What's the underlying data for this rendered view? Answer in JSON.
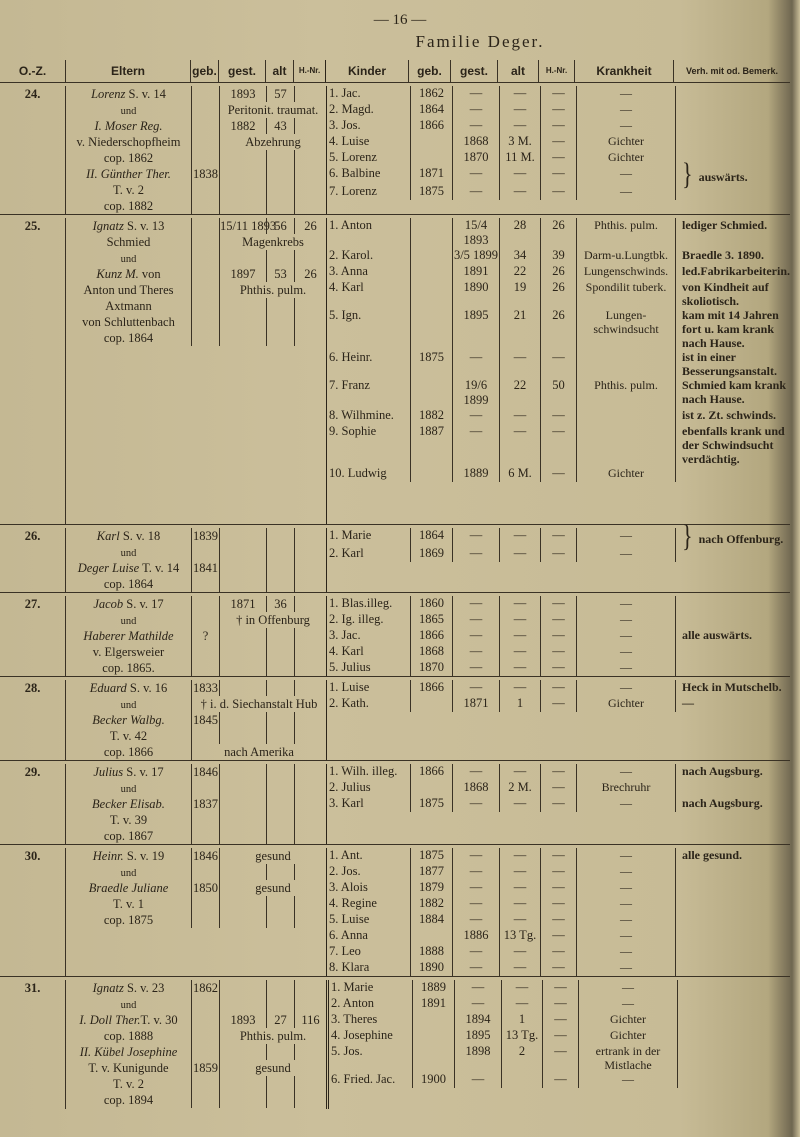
{
  "page_number": "— 16 —",
  "title": "Familie Deger.",
  "columns": [
    "O.-Z.",
    "Eltern",
    "geb.",
    "gest.",
    "alt",
    "H.-Nr.",
    "Kinder",
    "geb.",
    "gest.",
    "alt",
    "H.-Nr.",
    "Krankheit",
    "Verh. mit od. Bemerk."
  ],
  "families": [
    {
      "oz": "24.",
      "parents": [
        {
          "it": "Lorenz",
          "tx": " S. v. 14",
          "gest": "1893",
          "alt": "57"
        },
        {
          "tx": "und",
          "und": true,
          "span": "Peritonit. traumat."
        },
        {
          "it": "I. Moser Reg.",
          "gest": "1882",
          "alt": "43"
        },
        {
          "tx": "v. Niederschopfheim",
          "span": "Abzehrung"
        },
        {
          "tx": "cop. 1862"
        },
        {
          "it": "II. Günther Ther.",
          "geb": "1838"
        },
        {
          "tx": "T. v. 2"
        },
        {
          "tx": "cop. 1882"
        }
      ],
      "children": [
        [
          "1. Jac.",
          "1862",
          "—",
          "—",
          "—",
          "—",
          ""
        ],
        [
          "2. Magd.",
          "1864",
          "—",
          "—",
          "—",
          "—",
          ""
        ],
        [
          "3. Jos.",
          "1866",
          "—",
          "—",
          "—",
          "—",
          ""
        ],
        [
          "4. Luise",
          "",
          "1868",
          "3 M.",
          "—",
          "Gichter",
          ""
        ],
        [
          "5. Lorenz",
          "",
          "1870",
          "11 M.",
          "—",
          "Gichter",
          ""
        ],
        [
          "6. Balbine",
          "1871",
          "—",
          "—",
          "—",
          "—",
          "auswärts."
        ],
        [
          "7. Lorenz",
          "1875",
          "—",
          "—",
          "—",
          "—",
          ""
        ]
      ],
      "brace_row": 5
    },
    {
      "oz": "25.",
      "parents": [
        {
          "it": "Ignatz",
          "tx": " S. v. 13",
          "gest": "15/11 1893",
          "alt": "56",
          "hnr": "26"
        },
        {
          "tx": "Schmied",
          "span": "Magenkrebs"
        },
        {
          "tx": "und",
          "und": true
        },
        {
          "it": "Kunz M.",
          "tx": " von",
          "gest": "1897",
          "alt": "53",
          "hnr": "26"
        },
        {
          "tx": "Anton und Theres",
          "span": "Phthis. pulm."
        },
        {
          "tx": "Axtmann"
        },
        {
          "tx": "von Schluttenbach"
        },
        {
          "tx": "cop. 1864"
        }
      ],
      "children": [
        [
          "1. Anton",
          "",
          "15/4 1893",
          "28",
          "26",
          "Phthis. pulm.",
          "lediger Schmied."
        ],
        [
          "2. Karol.",
          "",
          "3/5 1899",
          "34",
          "39",
          "Darm-u.Lungtbk.",
          "Braedle 3. 1890."
        ],
        [
          "3. Anna",
          "",
          "1891",
          "22",
          "26",
          "Lungenschwinds.",
          "led.Fabrikarbeiterin."
        ],
        [
          "4. Karl",
          "",
          "1890",
          "19",
          "26",
          "Spondilit tuberk.",
          "von Kindheit auf skoliotisch."
        ],
        [
          "5. Ign.",
          "",
          "1895",
          "21",
          "26",
          "Lungen-schwindsucht",
          "kam mit 14 Jahren fort u. kam krank nach Hause."
        ],
        [
          "6. Heinr.",
          "1875",
          "—",
          "—",
          "—",
          "",
          "ist in einer Besserungsanstalt."
        ],
        [
          "7. Franz",
          "",
          "19/6 1899",
          "22",
          "50",
          "Phthis. pulm.",
          "Schmied kam krank nach Hause."
        ],
        [
          "8. Wilhmine.",
          "1882",
          "—",
          "—",
          "—",
          "",
          "ist z. Zt. schwinds."
        ],
        [
          "9. Sophie",
          "1887",
          "—",
          "—",
          "—",
          "",
          "ebenfalls krank und der Schwindsucht verdächtig."
        ],
        [
          "10. Ludwig",
          "",
          "1889",
          "6 M.",
          "—",
          "Gichter",
          ""
        ]
      ]
    },
    {
      "oz": "26.",
      "parents": [
        {
          "it": "Karl",
          "tx": " S. v. 18",
          "geb": "1839"
        },
        {
          "tx": "und",
          "und": true
        },
        {
          "it": "Deger Luise",
          "tx": " T. v. 14",
          "geb": "1841"
        },
        {
          "tx": "cop. 1864"
        }
      ],
      "children": [
        [
          "1. Marie",
          "1864",
          "—",
          "—",
          "—",
          "—",
          "nach Offenburg."
        ],
        [
          "2. Karl",
          "1869",
          "—",
          "—",
          "—",
          "—",
          ""
        ]
      ],
      "brace_row": 0
    },
    {
      "oz": "27.",
      "parents": [
        {
          "it": "Jacob",
          "tx": " S. v. 17",
          "gest": "1871",
          "alt": "36"
        },
        {
          "tx": "und",
          "und": true,
          "span": "† in Offenburg"
        },
        {
          "it": "Haberer Mathilde",
          "geb": "?"
        },
        {
          "tx": "v. Elgersweier"
        },
        {
          "tx": "cop. 1865."
        }
      ],
      "children": [
        [
          "1. Blas.illeg.",
          "1860",
          "—",
          "—",
          "—",
          "—",
          ""
        ],
        [
          "2. Ig. illeg.",
          "1865",
          "—",
          "—",
          "—",
          "—",
          ""
        ],
        [
          "3. Jac.",
          "1866",
          "—",
          "—",
          "—",
          "—",
          "alle auswärts."
        ],
        [
          "4. Karl",
          "1868",
          "—",
          "—",
          "—",
          "—",
          ""
        ],
        [
          "5. Julius",
          "1870",
          "—",
          "—",
          "—",
          "—",
          ""
        ]
      ]
    },
    {
      "oz": "28.",
      "parents": [
        {
          "it": "Eduard",
          "tx": " S. v. 16",
          "geb": "1833"
        },
        {
          "tx": "und",
          "und": true,
          "spanall": "† i. d. Siechanstalt Hub"
        },
        {
          "it": "Becker Walbg.",
          "geb": "1845"
        },
        {
          "tx": "T. v. 42"
        },
        {
          "tx": "cop. 1866",
          "spanall": "nach Amerika"
        }
      ],
      "children": [
        [
          "1. Luise",
          "1866",
          "—",
          "—",
          "—",
          "—",
          "Heck in Mutschelb."
        ],
        [
          "2. Kath.",
          "",
          "1871",
          "1",
          "—",
          "Gichter",
          "—"
        ]
      ]
    },
    {
      "oz": "29.",
      "parents": [
        {
          "it": "Julius",
          "tx": " S. v. 17",
          "geb": "1846"
        },
        {
          "tx": "und",
          "und": true
        },
        {
          "it": "Becker Elisab.",
          "geb": "1837"
        },
        {
          "tx": "T. v. 39"
        },
        {
          "tx": "cop. 1867"
        }
      ],
      "children": [
        [
          "1. Wilh. illeg.",
          "1866",
          "—",
          "—",
          "—",
          "—",
          "nach Augsburg."
        ],
        [
          "2. Julius",
          "",
          "1868",
          "2 M.",
          "—",
          "Brechruhr",
          ""
        ],
        [
          "3. Karl",
          "1875",
          "—",
          "—",
          "—",
          "—",
          "nach Augsburg."
        ]
      ]
    },
    {
      "oz": "30.",
      "parents": [
        {
          "it": "Heinr.",
          "tx": " S. v. 19",
          "geb": "1846",
          "span": "gesund"
        },
        {
          "tx": "und",
          "und": true
        },
        {
          "it": "Braedle Juliane",
          "geb": "1850",
          "span": "gesund"
        },
        {
          "tx": "T. v. 1"
        },
        {
          "tx": "cop. 1875"
        }
      ],
      "children": [
        [
          "1. Ant.",
          "1875",
          "—",
          "—",
          "—",
          "—",
          "alle gesund."
        ],
        [
          "2. Jos.",
          "1877",
          "—",
          "—",
          "—",
          "—",
          ""
        ],
        [
          "3. Alois",
          "1879",
          "—",
          "—",
          "—",
          "—",
          ""
        ],
        [
          "4. Regine",
          "1882",
          "—",
          "—",
          "—",
          "—",
          ""
        ],
        [
          "5. Luise",
          "1884",
          "—",
          "—",
          "—",
          "—",
          ""
        ],
        [
          "6. Anna",
          "",
          "1886",
          "13 Tg.",
          "—",
          "—",
          ""
        ],
        [
          "7. Leo",
          "1888",
          "—",
          "—",
          "—",
          "—",
          ""
        ],
        [
          "8. Klara",
          "1890",
          "—",
          "—",
          "—",
          "—",
          ""
        ]
      ]
    },
    {
      "oz": "31.",
      "parents": [
        {
          "it": "Ignatz",
          "tx": " S. v. 23",
          "geb": "1862"
        },
        {
          "tx": "und",
          "und": true
        },
        {
          "it": "I. Doll Ther.",
          "tx": "T. v. 30",
          "gest": "1893",
          "alt": "27",
          "hnr": "116"
        },
        {
          "tx": "cop. 1888",
          "span": "Phthis. pulm."
        },
        {
          "it": "II. Kübel Josephine"
        },
        {
          "tx": "T. v. Kunigunde",
          "geb": "1859",
          "span": "gesund"
        },
        {
          "tx": "T. v. 2"
        },
        {
          "tx": "cop. 1894"
        }
      ],
      "children": [
        [
          "1. Marie",
          "1889",
          "—",
          "—",
          "—",
          "—",
          ""
        ],
        [
          "2. Anton",
          "1891",
          "—",
          "—",
          "—",
          "—",
          ""
        ],
        [
          "3. Theres",
          "",
          "1894",
          "1",
          "—",
          "Gichter",
          ""
        ],
        [
          "4. Josephine",
          "",
          "1895",
          "13 Tg.",
          "—",
          "Gichter",
          ""
        ],
        [
          "5. Jos.",
          "",
          "1898",
          "2",
          "—",
          "ertrank in der Mistlache",
          ""
        ],
        [
          "6. Fried. Jac.",
          "1900",
          "—",
          "",
          "—",
          "—",
          ""
        ]
      ]
    }
  ]
}
